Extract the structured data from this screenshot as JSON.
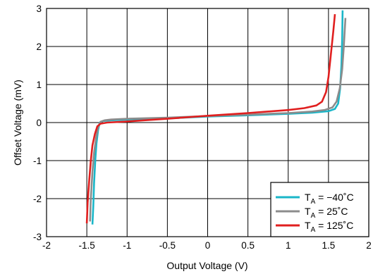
{
  "chart_data": {
    "type": "line",
    "title": "",
    "xlabel": "Output Voltage (V)",
    "ylabel": "Offset Voltage (mV)",
    "xlim": [
      -2,
      2
    ],
    "ylim": [
      -3,
      3
    ],
    "x_ticks": [
      "-2",
      "-1.5",
      "-1",
      "-0.5",
      "0",
      "0.5",
      "1",
      "1.5",
      "2"
    ],
    "y_ticks": [
      "3",
      "2",
      "1",
      "0",
      "-1",
      "-2",
      "-3"
    ],
    "grid": true,
    "legend_position": "bottom-right",
    "series": [
      {
        "name": "T_A = −40°C",
        "legend": {
          "prefix": "T",
          "sub": "A",
          "suffix": " = −40˚C"
        },
        "color": "#1ab6c8",
        "points": [
          [
            -1.43,
            -2.68
          ],
          [
            -1.42,
            -2.2
          ],
          [
            -1.41,
            -1.6
          ],
          [
            -1.395,
            -1.0
          ],
          [
            -1.38,
            -0.55
          ],
          [
            -1.36,
            -0.2
          ],
          [
            -1.34,
            0.0
          ],
          [
            -1.3,
            0.04
          ],
          [
            -1.2,
            0.06
          ],
          [
            -1.0,
            0.08
          ],
          [
            -0.5,
            0.11
          ],
          [
            0.0,
            0.16
          ],
          [
            0.5,
            0.19
          ],
          [
            1.0,
            0.23
          ],
          [
            1.3,
            0.26
          ],
          [
            1.5,
            0.3
          ],
          [
            1.58,
            0.36
          ],
          [
            1.62,
            0.5
          ],
          [
            1.645,
            0.9
          ],
          [
            1.66,
            1.5
          ],
          [
            1.67,
            2.2
          ],
          [
            1.675,
            2.95
          ]
        ]
      },
      {
        "name": "T_A = 25°C",
        "legend": {
          "prefix": "T",
          "sub": "A",
          "suffix": " = 25˚C"
        },
        "color": "#8c8c8c",
        "points": [
          [
            -1.46,
            -2.6
          ],
          [
            -1.45,
            -2.0
          ],
          [
            -1.43,
            -1.3
          ],
          [
            -1.41,
            -0.8
          ],
          [
            -1.385,
            -0.4
          ],
          [
            -1.36,
            -0.12
          ],
          [
            -1.33,
            0.02
          ],
          [
            -1.28,
            0.06
          ],
          [
            -1.2,
            0.08
          ],
          [
            -1.0,
            0.1
          ],
          [
            -0.5,
            0.13
          ],
          [
            0.0,
            0.17
          ],
          [
            0.5,
            0.21
          ],
          [
            1.0,
            0.25
          ],
          [
            1.3,
            0.29
          ],
          [
            1.45,
            0.33
          ],
          [
            1.55,
            0.4
          ],
          [
            1.6,
            0.55
          ],
          [
            1.64,
            0.9
          ],
          [
            1.67,
            1.4
          ],
          [
            1.69,
            2.0
          ],
          [
            1.71,
            2.75
          ]
        ]
      },
      {
        "name": "T_A = 125°C",
        "legend": {
          "prefix": "T",
          "sub": "A",
          "suffix": " = 125˚C"
        },
        "color": "#e01f1f",
        "points": [
          [
            -1.5,
            -2.65
          ],
          [
            -1.49,
            -2.1
          ],
          [
            -1.47,
            -1.5
          ],
          [
            -1.45,
            -1.0
          ],
          [
            -1.43,
            -0.6
          ],
          [
            -1.4,
            -0.3
          ],
          [
            -1.37,
            -0.1
          ],
          [
            -1.33,
            -0.03
          ],
          [
            -1.25,
            0.0
          ],
          [
            -1.0,
            0.03
          ],
          [
            -0.5,
            0.1
          ],
          [
            0.0,
            0.18
          ],
          [
            0.5,
            0.25
          ],
          [
            1.0,
            0.33
          ],
          [
            1.2,
            0.38
          ],
          [
            1.35,
            0.45
          ],
          [
            1.42,
            0.55
          ],
          [
            1.47,
            0.8
          ],
          [
            1.5,
            1.2
          ],
          [
            1.53,
            1.8
          ],
          [
            1.56,
            2.4
          ],
          [
            1.58,
            2.85
          ]
        ]
      }
    ]
  }
}
